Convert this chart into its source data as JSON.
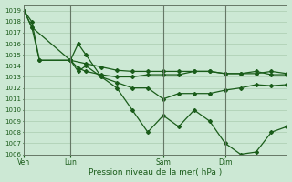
{
  "background_color": "#cce8d4",
  "grid_color": "#b8dfc0",
  "line_color": "#1a5c1a",
  "title": "Pression niveau de la mer( hPa )",
  "ylim": [
    1006,
    1019.5
  ],
  "yticks": [
    1006,
    1007,
    1008,
    1009,
    1010,
    1011,
    1012,
    1013,
    1014,
    1015,
    1016,
    1017,
    1018,
    1019
  ],
  "xtick_labels": [
    "Ven",
    "Lun",
    "Sam",
    "Dim"
  ],
  "xtick_positions": [
    0,
    12,
    36,
    52
  ],
  "xlim": [
    0,
    68
  ],
  "vlines": [
    12,
    36,
    52
  ],
  "series": [
    {
      "x": [
        0,
        2,
        4,
        12,
        16,
        20,
        24,
        28,
        32,
        36,
        40,
        44,
        48,
        52,
        56,
        60,
        64,
        68
      ],
      "y": [
        1019.0,
        1018.0,
        1014.5,
        1014.5,
        1014.2,
        1013.9,
        1013.6,
        1013.5,
        1013.5,
        1013.5,
        1013.5,
        1013.5,
        1013.5,
        1013.3,
        1013.3,
        1013.5,
        1013.2,
        1013.2
      ],
      "marker": "D",
      "markersize": 2.0,
      "linewidth": 0.9
    },
    {
      "x": [
        0,
        2,
        12,
        14,
        16,
        20,
        24,
        28,
        32,
        36,
        40,
        44,
        48,
        52,
        56,
        60,
        64,
        68
      ],
      "y": [
        1019.0,
        1017.5,
        1014.5,
        1016.0,
        1015.0,
        1013.0,
        1012.0,
        1010.0,
        1008.0,
        1009.5,
        1008.5,
        1010.0,
        1009.0,
        1007.0,
        1006.0,
        1006.2,
        1008.0,
        1008.5
      ],
      "marker": "D",
      "markersize": 2.0,
      "linewidth": 0.9
    },
    {
      "x": [
        0,
        2,
        4,
        12,
        14,
        16,
        20,
        24,
        28,
        32,
        36,
        40,
        44,
        48,
        52,
        56,
        60,
        64,
        68
      ],
      "y": [
        1019.0,
        1017.5,
        1014.5,
        1014.5,
        1013.5,
        1014.0,
        1013.0,
        1012.5,
        1012.0,
        1012.0,
        1011.0,
        1011.5,
        1011.5,
        1011.5,
        1011.8,
        1012.0,
        1012.3,
        1012.2,
        1012.3
      ],
      "marker": "D",
      "markersize": 2.0,
      "linewidth": 0.9
    },
    {
      "x": [
        12,
        14,
        16,
        20,
        24,
        28,
        32,
        36,
        40,
        44,
        48,
        52,
        56,
        60,
        64,
        68
      ],
      "y": [
        1014.5,
        1013.8,
        1013.5,
        1013.2,
        1013.0,
        1013.0,
        1013.2,
        1013.2,
        1013.2,
        1013.5,
        1013.5,
        1013.3,
        1013.3,
        1013.3,
        1013.5,
        1013.3
      ],
      "marker": "D",
      "markersize": 2.0,
      "linewidth": 0.9
    }
  ],
  "figsize": [
    3.2,
    2.0
  ],
  "dpi": 100
}
